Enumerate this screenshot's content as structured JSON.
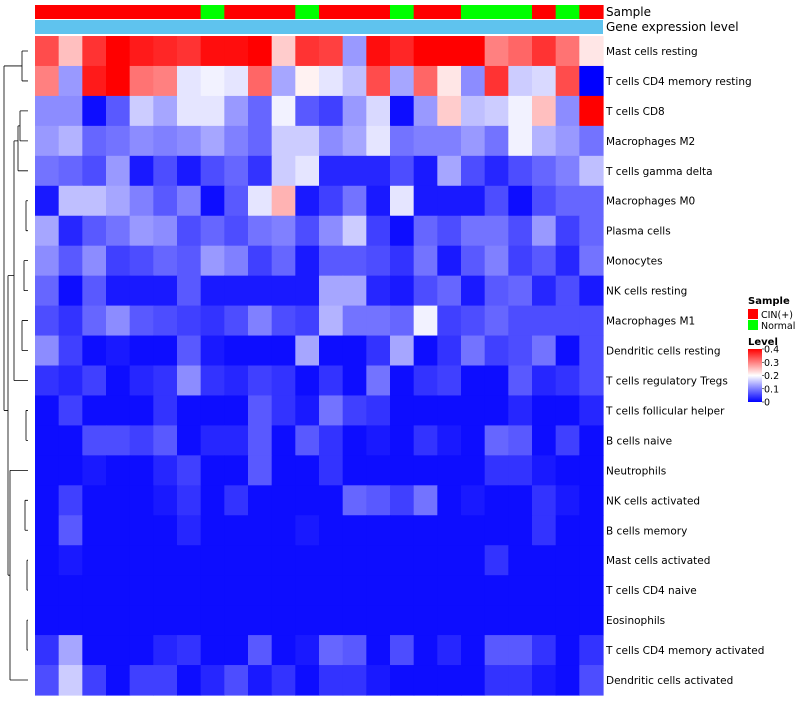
{
  "chart_data": {
    "type": "heatmap",
    "annotation_tracks": [
      "Sample",
      "Gene expression level"
    ],
    "sample_groups": [
      "CIN(+)",
      "CIN(+)",
      "CIN(+)",
      "CIN(+)",
      "CIN(+)",
      "CIN(+)",
      "CIN(+)",
      "Normal",
      "CIN(+)",
      "CIN(+)",
      "CIN(+)",
      "Normal",
      "CIN(+)",
      "CIN(+)",
      "CIN(+)",
      "Normal",
      "CIN(+)",
      "CIN(+)",
      "Normal",
      "Normal",
      "Normal",
      "CIN(+)",
      "Normal",
      "CIN(+)"
    ],
    "rows": [
      "Mast cells resting",
      "T cells CD4 memory resting",
      "T cells CD8",
      "Macrophages M2",
      "T cells gamma delta",
      "Macrophages M0",
      "Plasma cells",
      "Monocytes",
      "NK cells resting",
      "Macrophages M1",
      "Dendritic cells resting",
      "T cells regulatory  Tregs",
      "T cells follicular helper",
      "B cells naive",
      "Neutrophils",
      "NK cells activated",
      "B cells memory",
      "Mast cells activated",
      "T cells CD4 naive",
      "Eosinophils",
      "T cells CD4 memory activated",
      "Dendritic cells activated"
    ],
    "values": [
      [
        0.34,
        0.25,
        0.36,
        0.4,
        0.38,
        0.37,
        0.36,
        0.39,
        0.39,
        0.4,
        0.24,
        0.36,
        0.35,
        0.12,
        0.39,
        0.37,
        0.4,
        0.4,
        0.4,
        0.3,
        0.32,
        0.36,
        0.31,
        0.22
      ],
      [
        0.3,
        0.12,
        0.38,
        0.4,
        0.31,
        0.3,
        0.18,
        0.19,
        0.18,
        0.32,
        0.13,
        0.21,
        0.18,
        0.15,
        0.34,
        0.13,
        0.32,
        0.22,
        0.11,
        0.36,
        0.16,
        0.17,
        0.34,
        0.0
      ],
      [
        0.11,
        0.11,
        0.01,
        0.07,
        0.16,
        0.13,
        0.18,
        0.18,
        0.12,
        0.08,
        0.19,
        0.07,
        0.05,
        0.12,
        0.17,
        0.01,
        0.12,
        0.24,
        0.15,
        0.16,
        0.19,
        0.25,
        0.11,
        0.4
      ],
      [
        0.12,
        0.14,
        0.08,
        0.09,
        0.11,
        0.1,
        0.11,
        0.13,
        0.1,
        0.08,
        0.16,
        0.16,
        0.11,
        0.13,
        0.18,
        0.09,
        0.1,
        0.1,
        0.12,
        0.09,
        0.19,
        0.14,
        0.12,
        0.09
      ],
      [
        0.09,
        0.08,
        0.06,
        0.12,
        0.02,
        0.06,
        0.02,
        0.06,
        0.08,
        0.04,
        0.16,
        0.18,
        0.03,
        0.03,
        0.03,
        0.06,
        0.02,
        0.13,
        0.06,
        0.03,
        0.06,
        0.08,
        0.1,
        0.15
      ],
      [
        0.02,
        0.15,
        0.15,
        0.13,
        0.1,
        0.07,
        0.1,
        0.01,
        0.07,
        0.18,
        0.26,
        0.02,
        0.05,
        0.09,
        0.02,
        0.18,
        0.02,
        0.02,
        0.02,
        0.06,
        0.01,
        0.06,
        0.08,
        0.08
      ],
      [
        0.13,
        0.03,
        0.07,
        0.09,
        0.12,
        0.11,
        0.06,
        0.08,
        0.06,
        0.09,
        0.1,
        0.06,
        0.11,
        0.16,
        0.05,
        0.01,
        0.08,
        0.06,
        0.09,
        0.09,
        0.06,
        0.12,
        0.05,
        0.08
      ],
      [
        0.11,
        0.07,
        0.11,
        0.05,
        0.06,
        0.08,
        0.07,
        0.12,
        0.1,
        0.05,
        0.08,
        0.02,
        0.07,
        0.07,
        0.06,
        0.04,
        0.09,
        0.02,
        0.07,
        0.1,
        0.05,
        0.07,
        0.03,
        0.09
      ],
      [
        0.08,
        0.01,
        0.07,
        0.02,
        0.02,
        0.02,
        0.07,
        0.02,
        0.02,
        0.02,
        0.02,
        0.02,
        0.13,
        0.13,
        0.03,
        0.02,
        0.06,
        0.08,
        0.02,
        0.07,
        0.08,
        0.03,
        0.06,
        0.02
      ],
      [
        0.06,
        0.04,
        0.08,
        0.11,
        0.07,
        0.06,
        0.05,
        0.04,
        0.06,
        0.1,
        0.06,
        0.05,
        0.14,
        0.09,
        0.09,
        0.08,
        0.19,
        0.05,
        0.06,
        0.08,
        0.06,
        0.06,
        0.06,
        0.06
      ],
      [
        0.11,
        0.05,
        0.01,
        0.02,
        0.01,
        0.01,
        0.07,
        0.02,
        0.01,
        0.01,
        0.01,
        0.13,
        0.01,
        0.01,
        0.04,
        0.13,
        0.01,
        0.04,
        0.09,
        0.05,
        0.06,
        0.09,
        0.01,
        0.06
      ],
      [
        0.04,
        0.03,
        0.05,
        0.01,
        0.03,
        0.04,
        0.11,
        0.04,
        0.03,
        0.05,
        0.04,
        0.01,
        0.04,
        0.01,
        0.09,
        0.01,
        0.04,
        0.05,
        0.01,
        0.01,
        0.07,
        0.03,
        0.04,
        0.06
      ],
      [
        0.01,
        0.05,
        0.01,
        0.01,
        0.01,
        0.04,
        0.01,
        0.01,
        0.01,
        0.07,
        0.04,
        0.02,
        0.09,
        0.05,
        0.04,
        0.01,
        0.01,
        0.01,
        0.01,
        0.01,
        0.03,
        0.01,
        0.01,
        0.03
      ],
      [
        0.01,
        0.01,
        0.06,
        0.06,
        0.05,
        0.07,
        0.01,
        0.03,
        0.03,
        0.07,
        0.01,
        0.07,
        0.04,
        0.01,
        0.02,
        0.01,
        0.04,
        0.02,
        0.01,
        0.08,
        0.07,
        0.01,
        0.05,
        0.01
      ],
      [
        0.01,
        0.01,
        0.02,
        0.01,
        0.01,
        0.03,
        0.05,
        0.01,
        0.01,
        0.07,
        0.01,
        0.01,
        0.04,
        0.01,
        0.01,
        0.01,
        0.01,
        0.01,
        0.01,
        0.04,
        0.04,
        0.02,
        0.01,
        0.01
      ],
      [
        0.01,
        0.05,
        0.01,
        0.01,
        0.01,
        0.02,
        0.04,
        0.01,
        0.04,
        0.01,
        0.01,
        0.01,
        0.01,
        0.08,
        0.07,
        0.05,
        0.09,
        0.01,
        0.02,
        0.01,
        0.01,
        0.04,
        0.02,
        0.01
      ],
      [
        0.01,
        0.07,
        0.01,
        0.01,
        0.01,
        0.01,
        0.03,
        0.01,
        0.01,
        0.01,
        0.01,
        0.02,
        0.01,
        0.01,
        0.01,
        0.01,
        0.01,
        0.01,
        0.01,
        0.01,
        0.01,
        0.04,
        0.01,
        0.01
      ],
      [
        0.01,
        0.02,
        0.01,
        0.01,
        0.01,
        0.01,
        0.01,
        0.01,
        0.01,
        0.01,
        0.01,
        0.01,
        0.01,
        0.01,
        0.01,
        0.01,
        0.01,
        0.01,
        0.01,
        0.04,
        0.01,
        0.01,
        0.01,
        0.01
      ],
      [
        0.01,
        0.01,
        0.01,
        0.01,
        0.01,
        0.01,
        0.01,
        0.01,
        0.01,
        0.01,
        0.01,
        0.01,
        0.01,
        0.01,
        0.01,
        0.01,
        0.01,
        0.01,
        0.01,
        0.01,
        0.01,
        0.01,
        0.01,
        0.01
      ],
      [
        0.01,
        0.01,
        0.01,
        0.01,
        0.01,
        0.01,
        0.01,
        0.01,
        0.01,
        0.01,
        0.01,
        0.01,
        0.01,
        0.01,
        0.01,
        0.01,
        0.01,
        0.01,
        0.01,
        0.01,
        0.01,
        0.01,
        0.01,
        0.01
      ],
      [
        0.04,
        0.13,
        0.01,
        0.01,
        0.01,
        0.03,
        0.04,
        0.01,
        0.01,
        0.07,
        0.01,
        0.02,
        0.08,
        0.07,
        0.01,
        0.06,
        0.01,
        0.03,
        0.01,
        0.07,
        0.07,
        0.04,
        0.01,
        0.04
      ],
      [
        0.06,
        0.16,
        0.05,
        0.01,
        0.05,
        0.05,
        0.01,
        0.03,
        0.06,
        0.02,
        0.04,
        0.01,
        0.04,
        0.04,
        0.02,
        0.01,
        0.01,
        0.01,
        0.01,
        0.04,
        0.04,
        0.02,
        0.01,
        0.06
      ]
    ],
    "level_range": [
      0,
      0.4
    ],
    "ticks": [
      0,
      0.1,
      0.2,
      0.3,
      0.4
    ],
    "tick_labels": [
      "0",
      "0.1",
      "0.2",
      "0.3",
      "0.4"
    ],
    "legend": {
      "sample_title": "Sample",
      "sample_entries": [
        {
          "label": "CIN(+)",
          "color": "#ff0000"
        },
        {
          "label": "Normal",
          "color": "#00ff00"
        }
      ],
      "level_title": "Level",
      "color_low": "#0000ff",
      "color_mid": "#ffffff",
      "color_high": "#ff0000",
      "placement": "right"
    },
    "expression_track_color": "#5fc3ee"
  }
}
